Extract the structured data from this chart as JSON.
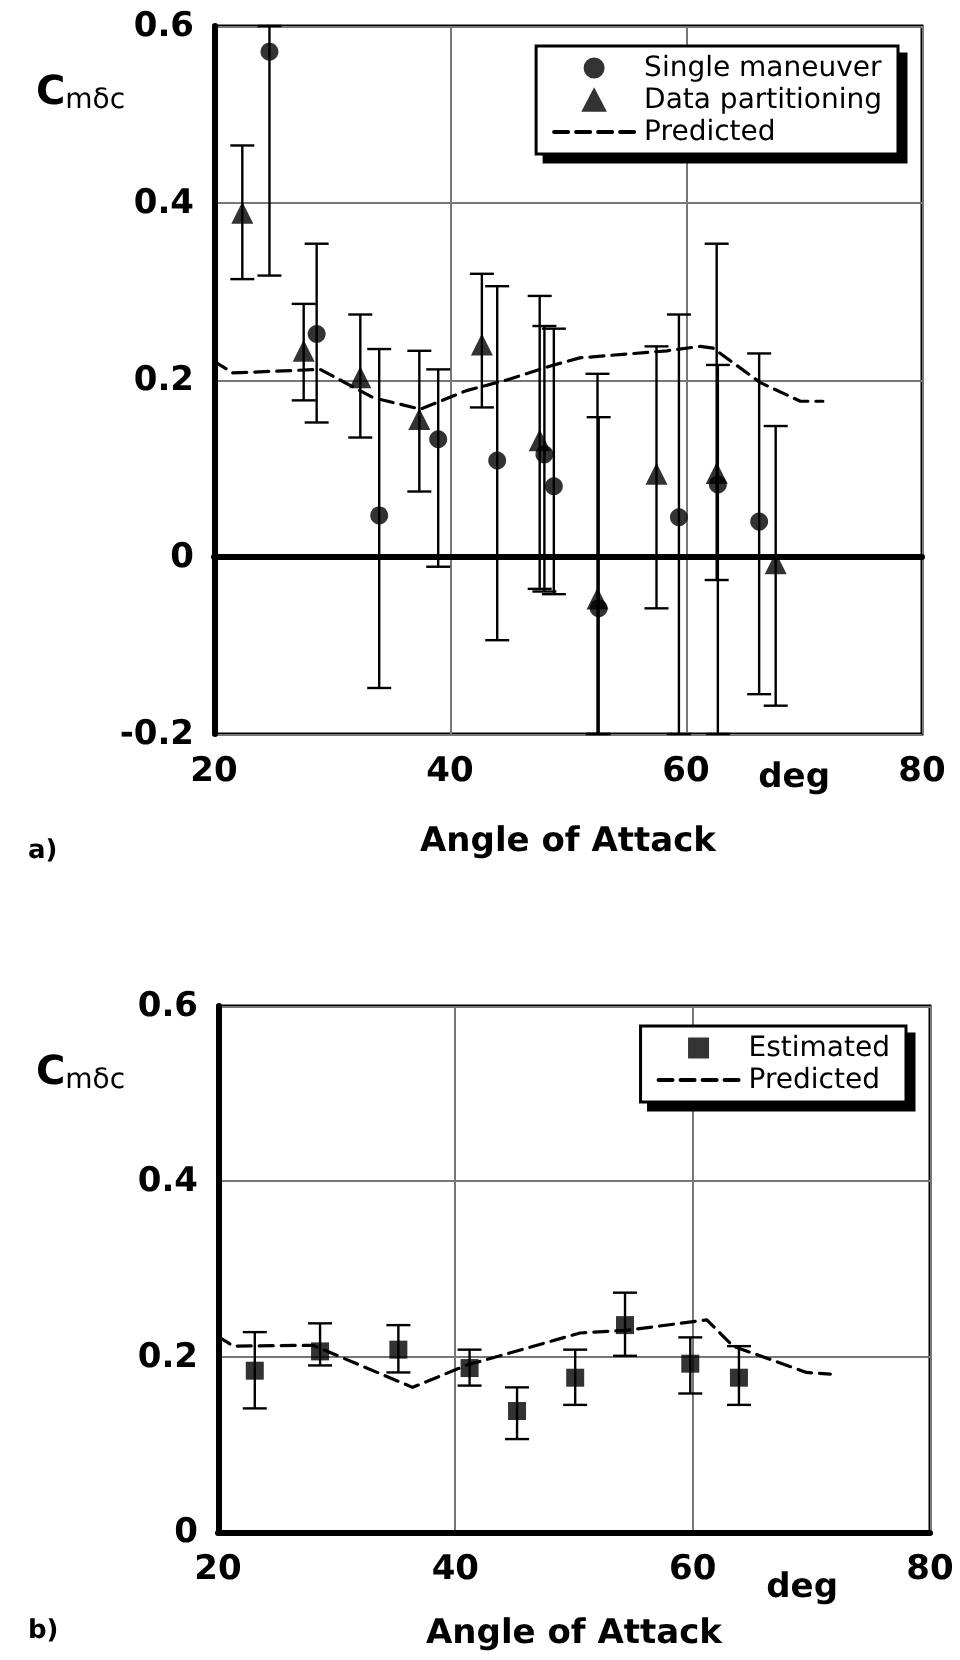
{
  "chart_data": [
    {
      "type": "scatter",
      "title": "a)",
      "xlabel": "Angle of Attack",
      "ylabel": "C$_{mδc}$",
      "xlim": [
        20,
        80
      ],
      "ylim": [
        -0.2,
        0.6
      ],
      "xticks": [
        20,
        40,
        60,
        80
      ],
      "yticks": [
        -0.2,
        0,
        0.2,
        0.4,
        0.6
      ],
      "grid": true,
      "legend": "top right",
      "annotations": [
        "deg"
      ],
      "series": [
        {
          "name": "Single maneuver",
          "marker": "circle",
          "color": "#000000",
          "x": [
            24.7,
            28.7,
            34.0,
            39.0,
            44.0,
            48.0,
            48.8,
            52.6,
            59.4,
            62.7,
            66.2
          ],
          "values": [
            0.571,
            0.252,
            0.047,
            0.133,
            0.109,
            0.116,
            0.08,
            -0.058,
            0.045,
            0.082,
            0.04
          ],
          "errors": [
            [
              0.318,
              0.6
            ],
            [
              0.152,
              0.354
            ],
            [
              -0.148,
              0.235
            ],
            [
              -0.011,
              0.212
            ],
            [
              -0.094,
              0.306
            ],
            [
              -0.039,
              0.261
            ],
            [
              -0.042,
              0.258
            ],
            [
              -0.2,
              0.158
            ],
            [
              -0.2,
              0.274
            ],
            [
              -0.2,
              0.217
            ],
            [
              -0.155,
              0.23
            ]
          ]
        },
        {
          "name": "Data partitioning",
          "marker": "triangle",
          "color": "#000000",
          "x": [
            22.4,
            27.6,
            32.4,
            37.4,
            42.7,
            47.6,
            52.5,
            57.5,
            62.6,
            67.6
          ],
          "values": [
            0.389,
            0.233,
            0.203,
            0.156,
            0.24,
            0.132,
            -0.047,
            0.094,
            0.095,
            -0.007
          ],
          "errors": [
            [
              0.314,
              0.465
            ],
            [
              0.177,
              0.286
            ],
            [
              0.135,
              0.274
            ],
            [
              0.074,
              0.233
            ],
            [
              0.169,
              0.32
            ],
            [
              -0.036,
              0.295
            ],
            [
              -0.2,
              0.207
            ],
            [
              -0.058,
              0.238
            ],
            [
              -0.026,
              0.354
            ],
            [
              -0.168,
              0.148
            ]
          ]
        },
        {
          "name": "Predicted",
          "type": "line",
          "marker": "none",
          "line_style": "dashed",
          "color": "#000000",
          "x": [
            20,
            21.6,
            29,
            33.5,
            37.5,
            41.4,
            44.8,
            48.8,
            51,
            58.4,
            61.2,
            62.3,
            66.3,
            69.7,
            71.6
          ],
          "values": [
            0.221,
            0.208,
            0.212,
            0.18,
            0.167,
            0.188,
            0.2,
            0.217,
            0.225,
            0.233,
            0.238,
            0.236,
            0.197,
            0.176,
            0.176
          ]
        }
      ]
    },
    {
      "type": "scatter",
      "title": "b)",
      "xlabel": "Angle of Attack",
      "ylabel": "C$_{mδc}$",
      "xlim": [
        20,
        80
      ],
      "ylim": [
        0,
        0.6
      ],
      "xticks": [
        20,
        40,
        60,
        80
      ],
      "yticks": [
        0,
        0.2,
        0.4,
        0.6
      ],
      "grid": true,
      "legend": "top right",
      "annotations": [
        "deg"
      ],
      "series": [
        {
          "name": "Estimated",
          "marker": "square",
          "color": "#000000",
          "x": [
            23.1,
            28.6,
            35.2,
            41.2,
            45.2,
            50.1,
            54.3,
            59.8,
            63.9
          ],
          "values": [
            0.184,
            0.206,
            0.208,
            0.187,
            0.138,
            0.176,
            0.236,
            0.192,
            0.176
          ],
          "errors": [
            [
              0.141,
              0.228
            ],
            [
              0.19,
              0.238
            ],
            [
              0.182,
              0.236
            ],
            [
              0.167,
              0.208
            ],
            [
              0.106,
              0.165
            ],
            [
              0.145,
              0.208
            ],
            [
              0.201,
              0.273
            ],
            [
              0.158,
              0.222
            ],
            [
              0.145,
              0.212
            ]
          ]
        },
        {
          "name": "Predicted",
          "type": "line",
          "marker": "none",
          "line_style": "dashed",
          "color": "#000000",
          "x": [
            20,
            21.3,
            28,
            36.4,
            40.9,
            50.5,
            54.4,
            61.2,
            63.4,
            69.6,
            71.6
          ],
          "values": [
            0.223,
            0.212,
            0.213,
            0.165,
            0.19,
            0.227,
            0.23,
            0.242,
            0.212,
            0.182,
            0.18
          ]
        }
      ]
    }
  ]
}
